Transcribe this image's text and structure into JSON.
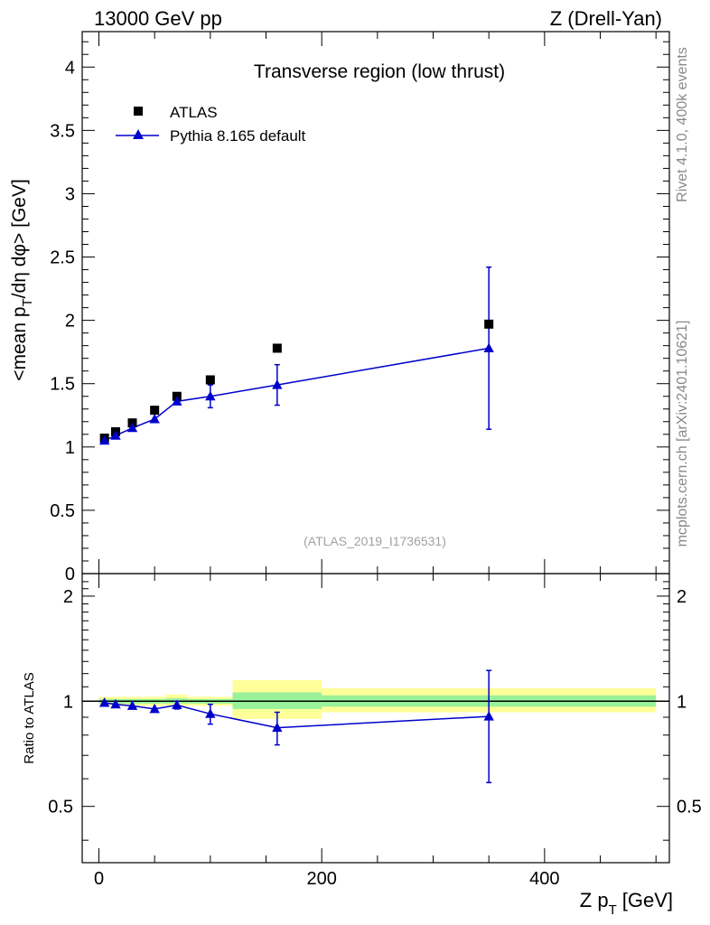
{
  "header": {
    "left": "13000 GeV pp",
    "right": "Z (Drell-Yan)"
  },
  "side_text": {
    "rivet": "Rivet 4.1.0,  400k events",
    "mcplots": "mcplots.cern.ch [arXiv:2401.10621]"
  },
  "chart_data": [
    {
      "panel": "main",
      "type": "scatter",
      "title": "Transverse region (low thrust)",
      "watermark": "(ATLAS_2019_I1736531)",
      "xlabel": "Z p_T [GeV]",
      "xlabel_main": "Z p",
      "xlabel_sub": "T",
      "xlabel_unit": "[GeV]",
      "ylabel": "<mean p_T/dη dφ> [GeV]",
      "ylabel_a": "<mean p",
      "ylabel_sub": "T",
      "ylabel_b": "/dη dφ> [GeV]",
      "xlim": [
        -15,
        512
      ],
      "ylim": [
        0,
        4.28
      ],
      "yticks": [
        0,
        0.5,
        1,
        1.5,
        2,
        2.5,
        3,
        3.5,
        4
      ],
      "ytick_labels": [
        "0",
        "0.5",
        "1",
        "1.5",
        "2",
        "2.5",
        "3",
        "3.5",
        "4"
      ],
      "legend": [
        "ATLAS",
        "Pythia 8.165 default"
      ],
      "series": [
        {
          "name": "ATLAS",
          "marker": "square",
          "color": "#000000",
          "x": [
            5,
            15,
            30,
            50,
            70,
            100,
            160,
            350
          ],
          "y": [
            1.07,
            1.12,
            1.19,
            1.29,
            1.4,
            1.53,
            1.78,
            1.97
          ]
        },
        {
          "name": "Pythia 8.165 default",
          "marker": "triangle",
          "color": "#0000cc",
          "x": [
            5,
            15,
            30,
            50,
            70,
            100,
            160,
            350
          ],
          "y": [
            1.05,
            1.09,
            1.15,
            1.22,
            1.36,
            1.4,
            1.49,
            1.78
          ],
          "yerr": [
            0.01,
            0.01,
            0.015,
            0.02,
            0.03,
            0.09,
            0.16,
            0.64
          ]
        }
      ]
    },
    {
      "panel": "ratio",
      "type": "scatter",
      "ylabel": "Ratio to ATLAS",
      "ylim": [
        0.345,
        2.32
      ],
      "xticks": [
        0,
        200,
        400
      ],
      "xtick_labels": [
        "0",
        "200",
        "400"
      ],
      "yticks": [
        0.5,
        1,
        2
      ],
      "ytick_labels": [
        "0.5",
        "1",
        "2"
      ],
      "reference_bands": [
        {
          "x0": 0,
          "x1": 10,
          "inner": [
            0.985,
            1.015
          ],
          "outer": [
            0.97,
            1.03
          ]
        },
        {
          "x0": 10,
          "x1": 20,
          "inner": [
            0.985,
            1.015
          ],
          "outer": [
            0.97,
            1.03
          ]
        },
        {
          "x0": 20,
          "x1": 40,
          "inner": [
            0.985,
            1.015
          ],
          "outer": [
            0.97,
            1.03
          ]
        },
        {
          "x0": 40,
          "x1": 60,
          "inner": [
            0.985,
            1.015
          ],
          "outer": [
            0.97,
            1.03
          ]
        },
        {
          "x0": 60,
          "x1": 80,
          "inner": [
            0.985,
            1.02
          ],
          "outer": [
            0.97,
            1.045
          ]
        },
        {
          "x0": 80,
          "x1": 120,
          "inner": [
            0.985,
            1.015
          ],
          "outer": [
            0.97,
            1.03
          ]
        },
        {
          "x0": 120,
          "x1": 200,
          "inner": [
            0.95,
            1.06
          ],
          "outer": [
            0.89,
            1.15
          ]
        },
        {
          "x0": 200,
          "x1": 500,
          "inner": [
            0.965,
            1.04
          ],
          "outer": [
            0.93,
            1.09
          ]
        }
      ],
      "series": [
        {
          "name": "Pythia 8.165 default / ATLAS",
          "marker": "triangle",
          "color": "#0000cc",
          "x": [
            5,
            15,
            30,
            50,
            70,
            100,
            160,
            350
          ],
          "y": [
            0.99,
            0.98,
            0.97,
            0.95,
            0.975,
            0.92,
            0.84,
            0.905
          ],
          "yerr": [
            0.008,
            0.008,
            0.012,
            0.015,
            0.025,
            0.06,
            0.09,
            0.32
          ]
        }
      ]
    }
  ]
}
